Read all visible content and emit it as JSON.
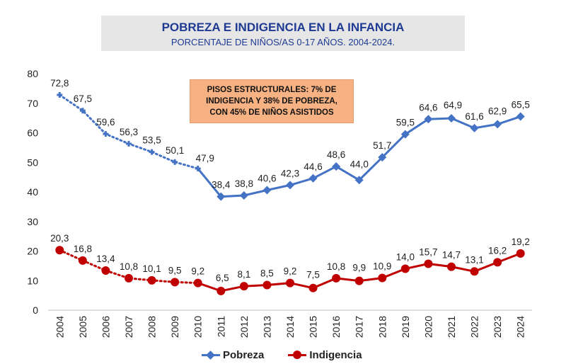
{
  "header": {
    "title": "POBREZA E INDIGENCIA EN LA INFANCIA",
    "subtitle": "PORCENTAJE DE NIÑOS/AS 0-17 AÑOS. 2004-2024."
  },
  "callout": {
    "lines": [
      "PISOS ESTRUCTURALES: 7% DE",
      "INDIGENCIA Y 38% DE POBREZA,",
      "CON 45% DE NIÑOS  ASISTIDOS"
    ]
  },
  "chart_data": {
    "type": "line",
    "title": "POBREZA E INDIGENCIA EN LA INFANCIA",
    "subtitle": "PORCENTAJE DE NIÑOS/AS 0-17 AÑOS. 2004-2024.",
    "xlabel": "",
    "ylabel": "",
    "ylim": [
      0,
      80
    ],
    "yticks": [
      0,
      10,
      20,
      30,
      40,
      50,
      60,
      70,
      80
    ],
    "categories": [
      "2004",
      "2005",
      "2006",
      "2007",
      "2008",
      "2009",
      "2010",
      "2011",
      "2012",
      "2013",
      "2014",
      "2015",
      "2016",
      "2017",
      "2018",
      "2019",
      "2020",
      "2021",
      "2022",
      "2023",
      "2024"
    ],
    "series": [
      {
        "name": "Pobreza",
        "color": "#4472c4",
        "marker": "diamond",
        "dotted_until_index": 6,
        "values": [
          72.8,
          67.5,
          59.6,
          56.3,
          53.5,
          50.1,
          47.9,
          38.4,
          38.8,
          40.6,
          42.3,
          44.6,
          48.6,
          44.0,
          51.7,
          59.5,
          64.6,
          64.9,
          61.6,
          62.9,
          65.5
        ],
        "labels": [
          "72,8",
          "67,5",
          "59,6",
          "56,3",
          "53,5",
          "50,1",
          "47,9",
          "38,4",
          "38,8",
          "40,6",
          "42,3",
          "44,6",
          "48,6",
          "44,0",
          "51,7",
          "59,5",
          "64,6",
          "64,9",
          "61,6",
          "62,9",
          "65,5"
        ]
      },
      {
        "name": "Indigencia",
        "color": "#c00000",
        "marker": "circle",
        "dotted_until_index": 6,
        "values": [
          20.3,
          16.8,
          13.4,
          10.8,
          10.1,
          9.5,
          9.2,
          6.5,
          8.1,
          8.5,
          9.2,
          7.5,
          10.8,
          9.9,
          10.9,
          14.0,
          15.7,
          14.7,
          13.1,
          16.2,
          19.2
        ],
        "labels": [
          "20,3",
          "16,8",
          "13,4",
          "10,8",
          "10,1",
          "9,5",
          "9,2",
          "6,5",
          "8,1",
          "8,5",
          "9,2",
          "7,5",
          "10,8",
          "9,9",
          "10,9",
          "14,0",
          "15,7",
          "14,7",
          "13,1",
          "16,2",
          "19,2"
        ]
      }
    ],
    "legend": "bottom",
    "grid": false
  }
}
